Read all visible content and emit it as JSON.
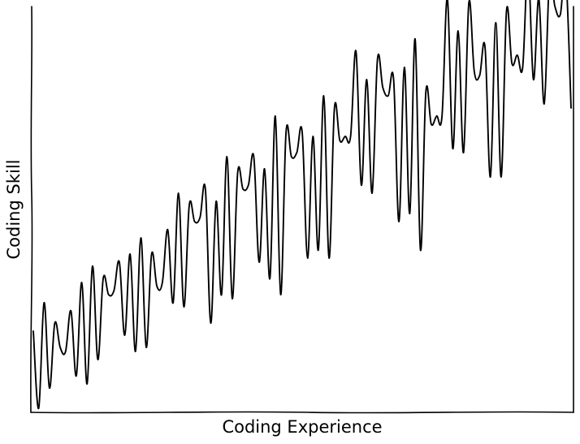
{
  "chart_data": {
    "type": "line",
    "title": "",
    "xlabel": "Coding Experience",
    "ylabel": "Coding Skill",
    "xlim": [
      0,
      100
    ],
    "ylim": [
      0,
      100
    ],
    "grid": false,
    "legend": "none",
    "show_ticks": false,
    "style": "hand-drawn",
    "series": [
      {
        "line_color": "#000000",
        "x": [
          0,
          1,
          2,
          3,
          4,
          5,
          6,
          7,
          8,
          9,
          10,
          11,
          12,
          13,
          14,
          15,
          16,
          17,
          18,
          19,
          20,
          21,
          22,
          23,
          24,
          25,
          26,
          27,
          28,
          29,
          30,
          31,
          32,
          33,
          34,
          35,
          36,
          37,
          38,
          39,
          40,
          41,
          42,
          43,
          44,
          45,
          46,
          47,
          48,
          49,
          50,
          51,
          52,
          53,
          54,
          55,
          56,
          57,
          58,
          59,
          60,
          61,
          62,
          63,
          64,
          65,
          66,
          67,
          68,
          69,
          70,
          71,
          72,
          73,
          74,
          75,
          76,
          77,
          78,
          79,
          80,
          81,
          82,
          83,
          84,
          85,
          86,
          87,
          88,
          89,
          90,
          91,
          92,
          93,
          94,
          95,
          96,
          97,
          98,
          99,
          100
        ],
        "y": [
          20,
          1,
          27,
          6,
          22,
          16,
          15,
          25,
          9,
          32,
          7,
          36,
          13,
          33,
          29,
          30,
          37,
          19,
          39,
          15,
          43,
          16,
          39,
          31,
          32,
          45,
          27,
          54,
          26,
          51,
          47,
          48,
          55,
          22,
          52,
          29,
          63,
          28,
          59,
          55,
          56,
          63,
          37,
          60,
          33,
          73,
          29,
          69,
          63,
          64,
          69,
          38,
          68,
          40,
          78,
          38,
          75,
          67,
          68,
          68,
          89,
          56,
          82,
          54,
          87,
          80,
          78,
          82,
          47,
          85,
          49,
          92,
          40,
          79,
          71,
          73,
          73,
          102,
          65,
          94,
          64,
          101,
          84,
          83,
          90,
          58,
          96,
          58,
          99,
          86,
          88,
          85,
          110,
          82,
          102,
          76,
          107,
          100,
          98,
          108,
          75
        ]
      }
    ]
  }
}
